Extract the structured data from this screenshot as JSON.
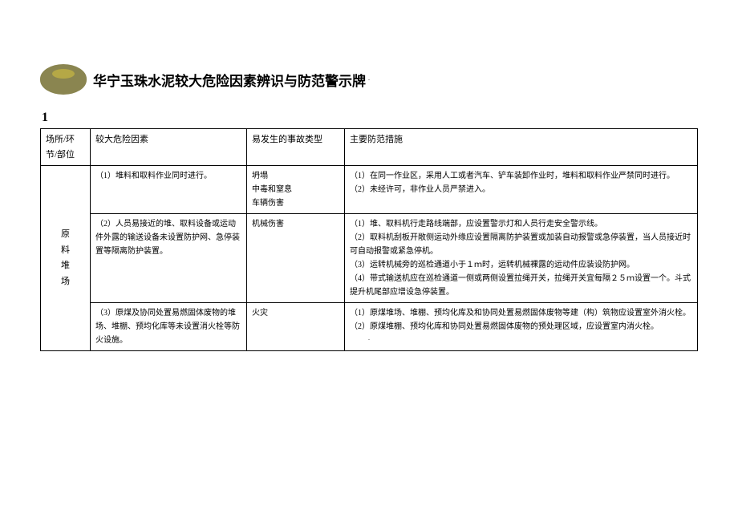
{
  "document": {
    "title": "华宁玉珠水泥较大危险因素辨识与防范警示牌",
    "section_number": "1",
    "marker": "."
  },
  "table": {
    "headers": {
      "location": "场所/环节/部位",
      "risk_factor": "较大危险因素",
      "accident_type": "易发生的事故类型",
      "measures": "主要防范措施"
    },
    "location_label": "原料堆场",
    "loc_c1": "原",
    "loc_c2": "料",
    "loc_c3": "堆",
    "loc_c4": "场",
    "rows": [
      {
        "risk": "（1）堆料和取料作业同时进行。",
        "accident": "坍塌\n中毒和窒息\n车辆伤害",
        "measures": "（1）在同一作业区，采用人工或者汽车、铲车装卸作业时，堆料和取料作业严禁同时进行。\n（2）未经许可，非作业人员严禁进入。"
      },
      {
        "risk": "（2）人员易接近的堆、取料设备或运动件外露的输送设备未设置防护网、急停装置等隔离防护装置。",
        "accident": "机械伤害",
        "measures": "（1）堆、取料机行走路线端部，应设置警示灯和人员行走安全警示线。\n（2）取料机刮板开敞侧运动外缘应设置隔离防护装置或加装自动报警或急停装置，当人员接近时可自动报警或紧急停机。\n（3）运转机械旁的巡检通道小于１ｍ时，运转机械裸露的运动件应装设防护网。\n（4）带式输送机应在巡检通道一侧或两侧设置拉绳开关，拉绳开关宜每隔２５ｍ设置一个。斗式提升机尾部应增设急停装置。"
      },
      {
        "risk": "（3）原煤及协同处置易燃固体废物的堆场、堆棚、预均化库等未设置消火栓等防火设施。",
        "accident": "火灾",
        "measures": "（1）原煤堆场、堆棚、预均化库及和协同处置易燃固体废物等建（构）筑物应设置室外消火栓。\n（2）原煤堆棚、预均化库和协同处置易燃固体废物的预处理区域，应设置室内消火栓。"
      }
    ]
  }
}
